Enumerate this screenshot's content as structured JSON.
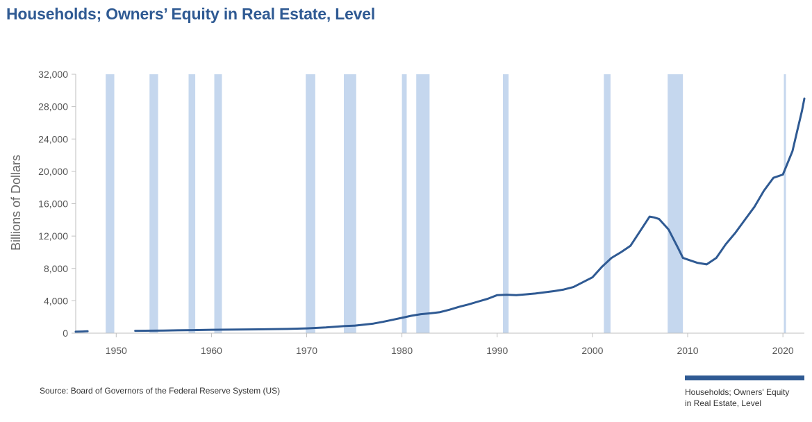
{
  "title": "Households; Owners’ Equity in Real Estate, Level",
  "source": "Source: Board of Governors of the Federal Reserve System (US)",
  "colors": {
    "line": "#2f5a93",
    "recession": "#c5d7ee",
    "title": "#2f5a93"
  },
  "chart_data": {
    "type": "line",
    "title": "Households; Owners’ Equity in Real Estate, Level",
    "xlabel": "",
    "ylabel": "Billions of Dollars",
    "xlim": [
      1945.75,
      2022.25
    ],
    "ylim": [
      0,
      32000
    ],
    "grid": false,
    "legend_position": "bottom-right",
    "x_ticks": [
      1950,
      1960,
      1970,
      1980,
      1990,
      2000,
      2010,
      2020
    ],
    "y_ticks": [
      0,
      4000,
      8000,
      12000,
      16000,
      20000,
      24000,
      28000,
      32000
    ],
    "y_tick_labels": [
      "0",
      "4,000",
      "8,000",
      "12,000",
      "16,000",
      "20,000",
      "24,000",
      "28,000",
      "32,000"
    ],
    "recessions": [
      [
        1948.9,
        1949.8
      ],
      [
        1953.5,
        1954.4
      ],
      [
        1957.6,
        1958.3
      ],
      [
        1960.3,
        1961.1
      ],
      [
        1969.9,
        1970.9
      ],
      [
        1973.9,
        1975.2
      ],
      [
        1980.0,
        1980.5
      ],
      [
        1981.5,
        1982.9
      ],
      [
        1990.6,
        1991.2
      ],
      [
        2001.2,
        2001.9
      ],
      [
        2007.9,
        2009.5
      ],
      [
        2020.1,
        2020.3
      ]
    ],
    "series": [
      {
        "name": "Households; Owners' Equity in Real Estate, Level",
        "segments": [
          [
            [
              1945.75,
              180
            ],
            [
              1946.5,
              210
            ],
            [
              1947.0,
              230
            ]
          ],
          [
            [
              1952.0,
              290
            ],
            [
              1955,
              330
            ],
            [
              1958,
              380
            ],
            [
              1960,
              420
            ],
            [
              1962,
              440
            ],
            [
              1965,
              470
            ],
            [
              1968,
              520
            ],
            [
              1970,
              590
            ],
            [
              1972,
              700
            ],
            [
              1974,
              880
            ],
            [
              1975,
              930
            ],
            [
              1976,
              1050
            ],
            [
              1977,
              1180
            ],
            [
              1978,
              1400
            ],
            [
              1979,
              1650
            ],
            [
              1980,
              1900
            ],
            [
              1981,
              2150
            ],
            [
              1982,
              2350
            ],
            [
              1983,
              2450
            ],
            [
              1984,
              2600
            ],
            [
              1985,
              2900
            ],
            [
              1986,
              3250
            ],
            [
              1987,
              3550
            ],
            [
              1988,
              3900
            ],
            [
              1989,
              4250
            ],
            [
              1990,
              4700
            ],
            [
              1991,
              4750
            ],
            [
              1992,
              4700
            ],
            [
              1993,
              4800
            ],
            [
              1994,
              4900
            ],
            [
              1995,
              5050
            ],
            [
              1996,
              5200
            ],
            [
              1997,
              5400
            ],
            [
              1998,
              5700
            ],
            [
              1999,
              6300
            ],
            [
              2000,
              6900
            ],
            [
              2001,
              8200
            ],
            [
              2002,
              9300
            ],
            [
              2003,
              10000
            ],
            [
              2004,
              10800
            ],
            [
              2005,
              12600
            ],
            [
              2006,
              14400
            ],
            [
              2006.5,
              14300
            ],
            [
              2007,
              14100
            ],
            [
              2008,
              12800
            ],
            [
              2009,
              10500
            ],
            [
              2009.5,
              9300
            ],
            [
              2010,
              9100
            ],
            [
              2011,
              8700
            ],
            [
              2012,
              8500
            ],
            [
              2013,
              9300
            ],
            [
              2014,
              11000
            ],
            [
              2015,
              12400
            ],
            [
              2016,
              14000
            ],
            [
              2017,
              15600
            ],
            [
              2018,
              17600
            ],
            [
              2019,
              19200
            ],
            [
              2020,
              19600
            ],
            [
              2021,
              22500
            ],
            [
              2021.5,
              25000
            ],
            [
              2022,
              27500
            ],
            [
              2022.25,
              29000
            ]
          ]
        ]
      }
    ]
  }
}
